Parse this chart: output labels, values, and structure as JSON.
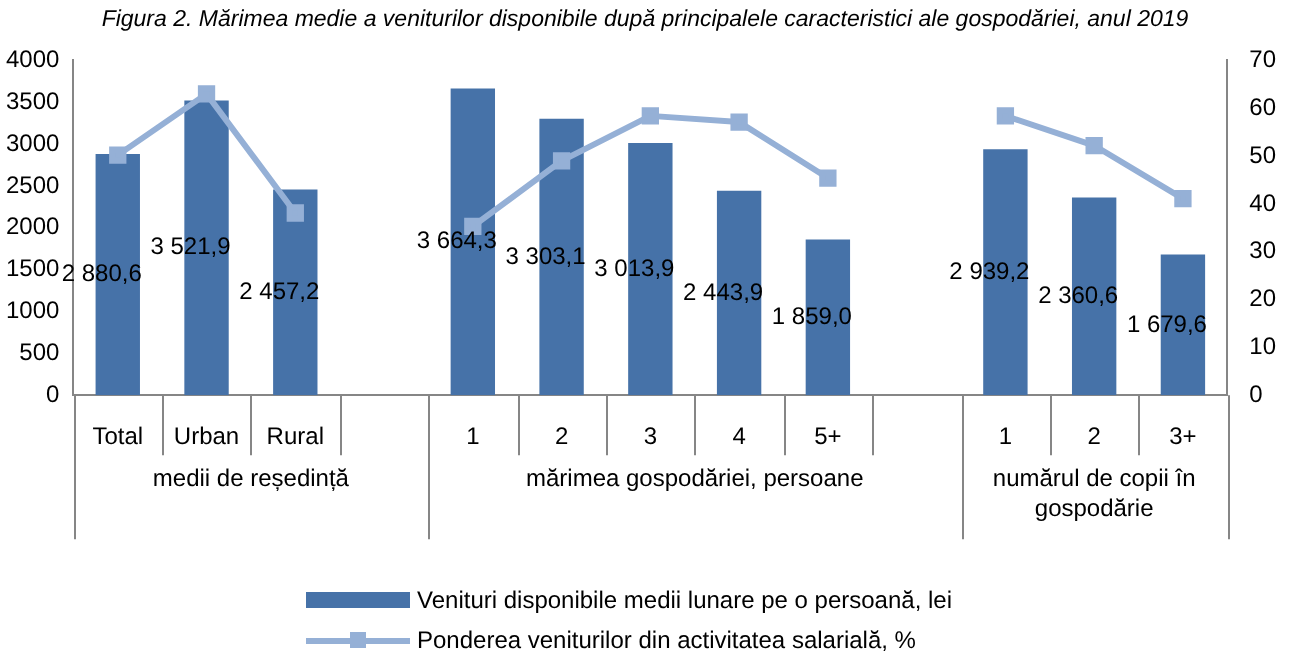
{
  "chart_data": {
    "type": "bar",
    "title": "Figura 2. Mărimea medie a veniturilor disponibile după principalele caracteristici ale gospodăriei, anul 2019",
    "categories": [
      "Total",
      "Urban",
      "Rural",
      null,
      "1",
      "2",
      "3",
      "4",
      "5+",
      null,
      "1",
      "2",
      "3+"
    ],
    "series": [
      {
        "name": "Venituri disponibile medii lunare pe o persoană, lei",
        "color": "#4672a8",
        "values": [
          2880.6,
          3521.9,
          2457.2,
          null,
          3664.3,
          3303.1,
          3013.9,
          2443.9,
          1859.0,
          null,
          2939.2,
          2360.6,
          1679.6
        ],
        "value_labels": [
          "2 880,6",
          "3 521,9",
          "2 457,2",
          null,
          "3 664,3",
          "3 303,1",
          "3 013,9",
          "2 443,9",
          "1 859,0",
          null,
          "2 939,2",
          "2 360,6",
          "1 679,6"
        ]
      },
      {
        "name": "Ponderea veniturilor din activitatea salarială, %",
        "type": "line",
        "axis": "y2",
        "color": "#95b0d6",
        "marker": "square",
        "values": [
          50.2,
          63.0,
          38.1,
          null,
          35.3,
          49.0,
          58.4,
          57.1,
          45.4,
          null,
          58.4,
          52.2,
          41.1
        ]
      }
    ],
    "annotations": [
      "medii de reședință",
      "mărimea gospodăriei, persoane",
      "numărul de copii în gospodărie"
    ],
    "ylim": [
      0,
      4000
    ],
    "yticks": [
      0,
      500,
      1000,
      1500,
      2000,
      2500,
      3000,
      3500,
      4000
    ],
    "y2lim": [
      0,
      70
    ],
    "y2ticks": [
      0,
      10,
      20,
      30,
      40,
      50,
      60,
      70
    ],
    "grid": false,
    "legend": "bottom"
  }
}
